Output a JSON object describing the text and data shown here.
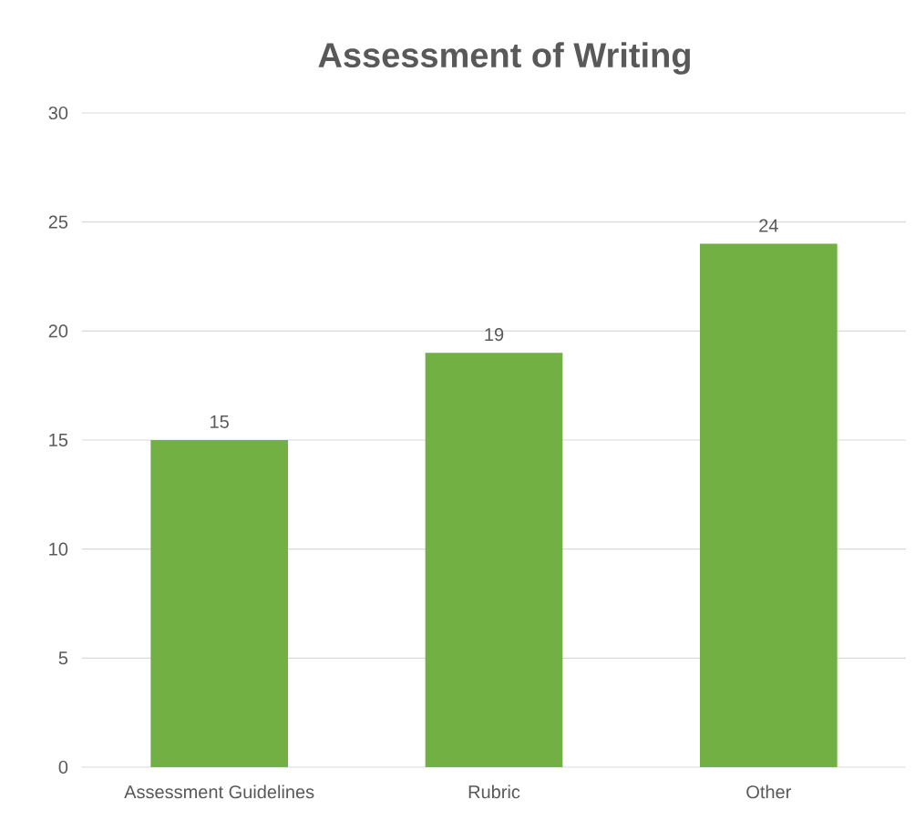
{
  "chart_data": {
    "type": "bar",
    "title": "Assessment of Writing",
    "categories": [
      "Assessment Guidelines",
      "Rubric",
      "Other"
    ],
    "values": [
      15,
      19,
      24
    ],
    "color": "#72b043",
    "ylim": [
      0,
      30
    ],
    "yticks": [
      0,
      5,
      10,
      15,
      20,
      25,
      30
    ],
    "grid": "y",
    "data_labels": true
  }
}
